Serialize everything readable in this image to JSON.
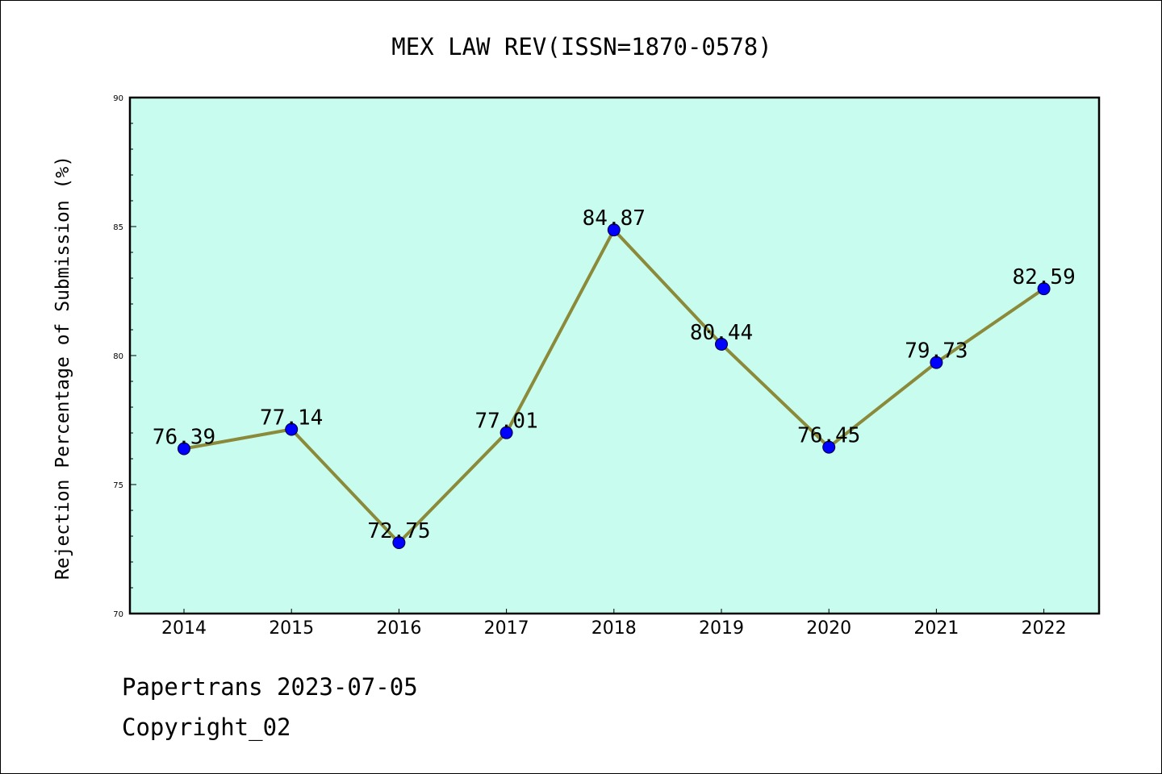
{
  "chart_data": {
    "type": "line",
    "title": "MEX LAW REV(ISSN=1870-0578)",
    "xlabel": "",
    "ylabel": "Rejection Percentage of Submission (%)",
    "categories": [
      "2014",
      "2015",
      "2016",
      "2017",
      "2018",
      "2019",
      "2020",
      "2021",
      "2022"
    ],
    "values": [
      76.39,
      77.14,
      72.75,
      77.01,
      84.87,
      80.44,
      76.45,
      79.73,
      82.59
    ],
    "data_labels": [
      "76.39",
      "77.14",
      "72.75",
      "77.01",
      "84.87",
      "80.44",
      "76.45",
      "79.73",
      "82.59"
    ],
    "ylim": [
      70,
      90
    ],
    "yticks": [
      "70",
      "75",
      "80",
      "85",
      "90"
    ],
    "grid": false,
    "legend": "none",
    "colors": {
      "plot_background": "#c8fcee",
      "line": "#8b8a3a",
      "marker": "#0000ff"
    }
  },
  "footer": {
    "line1": "Papertrans 2023-07-05",
    "line2": "Copyright_02"
  }
}
